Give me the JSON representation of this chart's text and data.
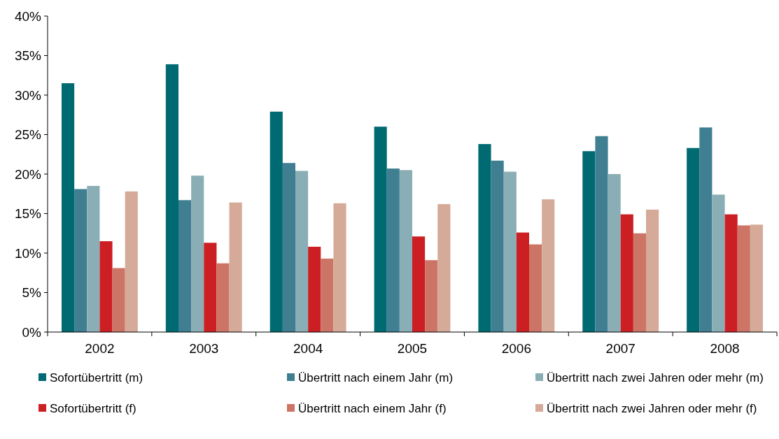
{
  "chart_data": {
    "type": "bar",
    "categories": [
      "2002",
      "2003",
      "2004",
      "2005",
      "2006",
      "2007",
      "2008"
    ],
    "series": [
      {
        "name": "Sofortübertritt (m)",
        "color": "#006a72",
        "values": [
          31.5,
          33.9,
          27.9,
          26.0,
          23.8,
          22.9,
          23.3
        ]
      },
      {
        "name": "Übertritt nach einem Jahr (m)",
        "color": "#3f7f91",
        "values": [
          18.1,
          16.7,
          21.4,
          20.7,
          21.7,
          24.8,
          25.9
        ]
      },
      {
        "name": "Übertritt nach zwei Jahren oder mehr (m)",
        "color": "#8aaeb5",
        "values": [
          18.5,
          19.8,
          20.4,
          20.5,
          20.3,
          20.0,
          17.4
        ]
      },
      {
        "name": "Sofortübertritt (f)",
        "color": "#cc1f24",
        "values": [
          11.5,
          11.3,
          10.8,
          12.1,
          12.6,
          14.9,
          14.9
        ]
      },
      {
        "name": "Übertritt nach einem Jahr (f)",
        "color": "#cc7466",
        "values": [
          8.1,
          8.7,
          9.3,
          9.1,
          11.1,
          12.5,
          13.5
        ]
      },
      {
        "name": "Übertritt nach zwei Jahren oder mehr (f)",
        "color": "#d6aa98",
        "values": [
          17.8,
          16.4,
          16.3,
          16.2,
          16.8,
          15.5,
          13.6
        ]
      }
    ],
    "ylim": [
      0,
      40
    ],
    "yticks": [
      {
        "value": 0,
        "label": "0%"
      },
      {
        "value": 5,
        "label": "5%"
      },
      {
        "value": 10,
        "label": "10%"
      },
      {
        "value": 15,
        "label": "15%"
      },
      {
        "value": 20,
        "label": "20%"
      },
      {
        "value": 25,
        "label": "25%"
      },
      {
        "value": 30,
        "label": "30%"
      },
      {
        "value": 35,
        "label": "35%"
      },
      {
        "value": 40,
        "label": "40%"
      }
    ],
    "grid": false,
    "legend": "bottom"
  }
}
